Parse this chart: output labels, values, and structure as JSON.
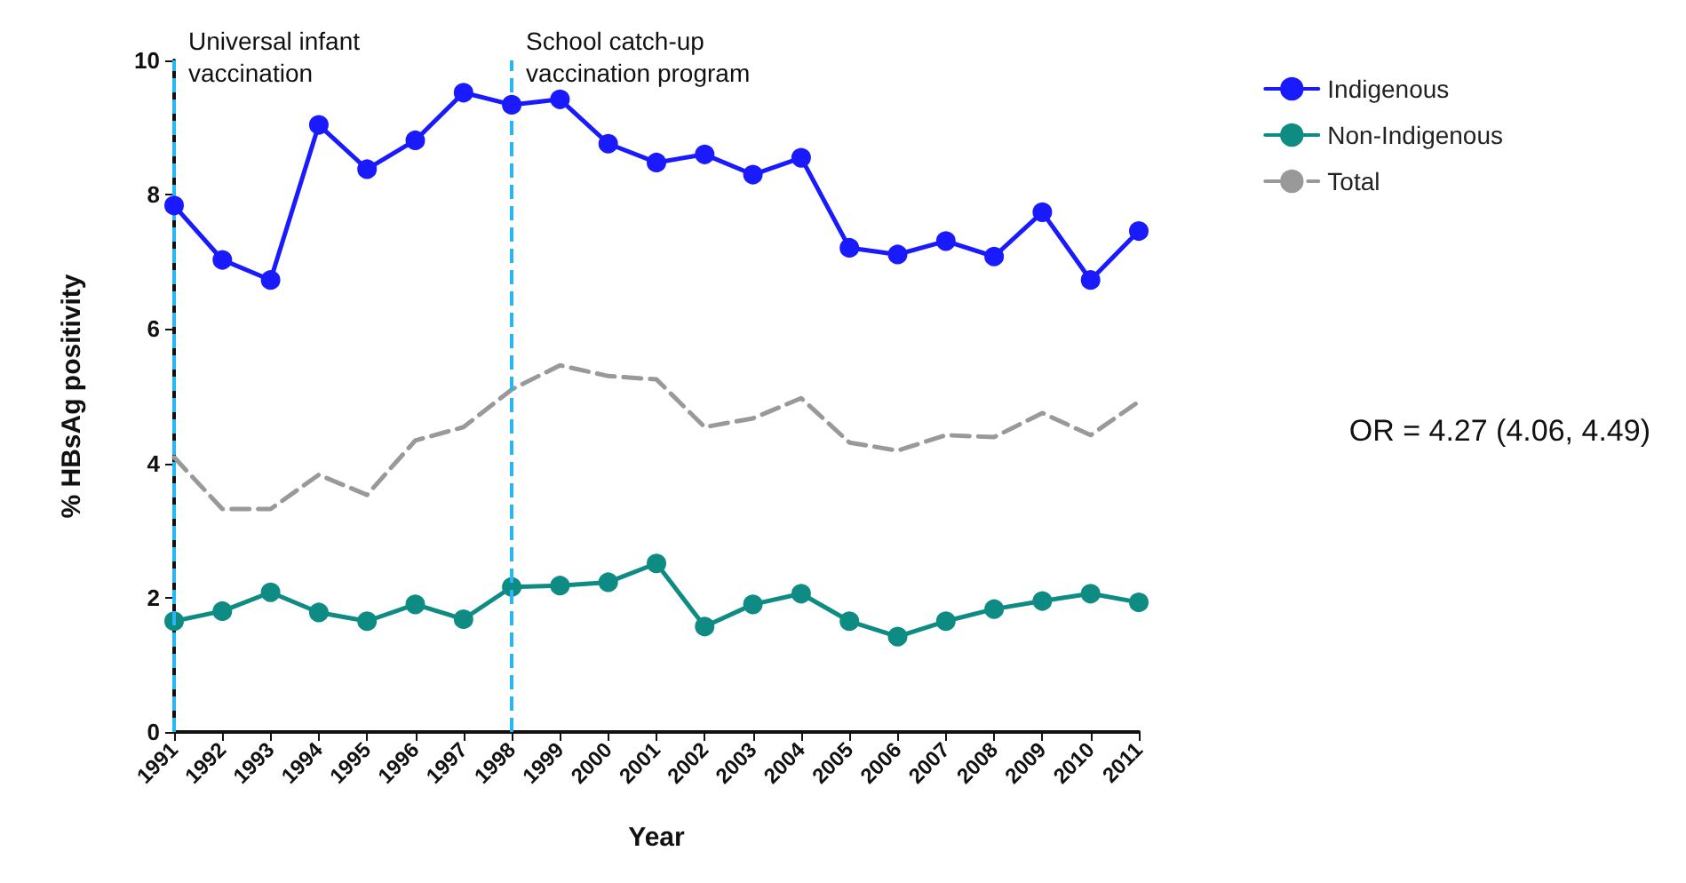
{
  "chart_data": {
    "type": "line",
    "xlabel": "Year",
    "ylabel": "% HBsAg positivity",
    "categories": [
      "1991",
      "1992",
      "1993",
      "1994",
      "1995",
      "1996",
      "1997",
      "1998",
      "1999",
      "2000",
      "2001",
      "2002",
      "2003",
      "2004",
      "2005",
      "2006",
      "2007",
      "2008",
      "2009",
      "2010",
      "2011"
    ],
    "series": [
      {
        "name": "Indigenous",
        "color": "#1a1aff",
        "marker": "circle",
        "line_style": "solid",
        "values": [
          7.84,
          7.03,
          6.73,
          9.04,
          8.38,
          8.81,
          9.52,
          9.34,
          9.42,
          8.76,
          8.48,
          8.6,
          8.3,
          8.55,
          7.21,
          7.11,
          7.31,
          7.08,
          7.74,
          6.73,
          7.46
        ]
      },
      {
        "name": "Non-Indigenous",
        "color": "#0e8c84",
        "marker": "circle",
        "line_style": "solid",
        "values": [
          1.65,
          1.8,
          2.08,
          1.78,
          1.65,
          1.9,
          1.68,
          2.16,
          2.18,
          2.23,
          2.51,
          1.57,
          1.9,
          2.06,
          1.65,
          1.42,
          1.65,
          1.83,
          1.95,
          2.06,
          1.93
        ]
      },
      {
        "name": "Total",
        "color": "#999999",
        "marker": "none",
        "line_style": "dashed",
        "values": [
          4.09,
          3.32,
          3.32,
          3.83,
          3.53,
          4.34,
          4.54,
          5.1,
          5.46,
          5.3,
          5.25,
          4.54,
          4.67,
          4.97,
          4.31,
          4.19,
          4.42,
          4.39,
          4.75,
          4.42,
          4.92
        ]
      }
    ],
    "ylim": [
      0,
      10
    ],
    "yticks": [
      0,
      2,
      4,
      6,
      8,
      10
    ],
    "grid": false,
    "legend": "top right",
    "ref_lines": [
      {
        "axis": "x",
        "value": "1991",
        "label": "Universal infant\nvaccination",
        "color": "#29b6f6",
        "line_style": "dashed"
      },
      {
        "axis": "x",
        "value": "1998",
        "label": "School catch-up\nvaccination program",
        "color": "#29b6f6",
        "line_style": "dashed"
      }
    ],
    "annotations": [
      "OR = 4.27 (4.06, 4.49)"
    ]
  }
}
